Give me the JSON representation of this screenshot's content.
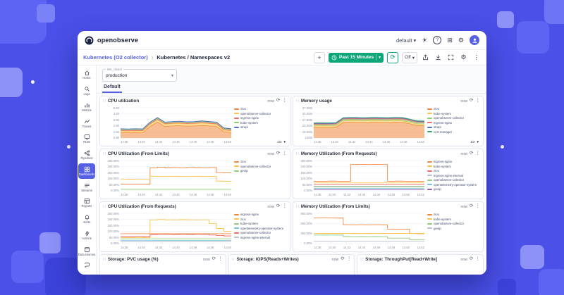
{
  "colors": {
    "accent_green": "#0ca678",
    "brand_indigo": "#5560e4",
    "background_blue": "#4a50e8"
  },
  "icons": {
    "drag": "∷",
    "refresh": "⟳",
    "more": "⋮",
    "caret": "▾",
    "chevron": "›",
    "plus": "+",
    "sun": "☀",
    "gear": "⚙",
    "apps": "⊞",
    "help": "?",
    "pagination_down": "▼"
  },
  "topbar": {
    "brand": "openobserve",
    "org": "default"
  },
  "toolbar": {
    "breadcrumb_folder": "Kubernetes (O2 collector)",
    "breadcrumb_page": "Kubernetes / Namespaces v2",
    "time_range": "Past 15 Minutes",
    "refresh_interval": "Off"
  },
  "sidebar": {
    "items": [
      {
        "label": "Home",
        "icon": "home-icon"
      },
      {
        "label": "Logs",
        "icon": "search-icon"
      },
      {
        "label": "Metrics",
        "icon": "bar-chart-icon"
      },
      {
        "label": "Traces",
        "icon": "line-chart-icon"
      },
      {
        "label": "RUM",
        "icon": "monitor-icon"
      },
      {
        "label": "Pipelines",
        "icon": "branch-icon"
      },
      {
        "label": "Dashboards",
        "icon": "dashboard-grid-icon",
        "active": true
      },
      {
        "label": "Streams",
        "icon": "streams-icon"
      },
      {
        "label": "Reports",
        "icon": "report-table-icon"
      },
      {
        "label": "Alerts",
        "icon": "bell-icon"
      },
      {
        "label": "Actions",
        "icon": "lightning-icon"
      },
      {
        "label": "Data sources",
        "icon": "database-icon"
      }
    ]
  },
  "filters": {
    "variable_label": "k8s_cluster",
    "variable_value": "production",
    "tab": "Default"
  },
  "panel_common": {
    "now_label": "now"
  },
  "panels": [
    {
      "title": "CPU utilization",
      "pagination": "1/2",
      "chart_data": {
        "type": "stacked-area",
        "ylim": [
          0,
          5.5
        ],
        "y_labels": [
          "5.50",
          "4.50",
          "3.50",
          "2.50",
          "1.50",
          "0.50"
        ],
        "x_labels": [
          "14:38",
          "14:40",
          "14:42",
          "14:44",
          "14:46",
          "14:48",
          "14:50"
        ],
        "series": [
          {
            "name": "ziox",
            "color": "#f0863a",
            "values": [
              1.0,
              0.95,
              1.0,
              0.95,
              2.1,
              2.9,
              2.1,
              2.2,
              2.25,
              2.15,
              2.2,
              2.3,
              2.2,
              2.1,
              1.15,
              1.0
            ]
          },
          {
            "name": "openobserve-collector",
            "color": "#fbc34b",
            "values": [
              0.3,
              0.31,
              0.3,
              0.32,
              0.4,
              0.42,
              0.41,
              0.4,
              0.42,
              0.41,
              0.4,
              0.42,
              0.41,
              0.4,
              0.31,
              0.3
            ]
          },
          {
            "name": "ingress-nginx",
            "color": "#ef6a6a",
            "values": [
              0.12,
              0.12,
              0.12,
              0.12,
              0.12,
              0.12,
              0.12,
              0.12,
              0.12,
              0.12,
              0.12,
              0.12,
              0.12,
              0.12,
              0.12,
              0.12
            ]
          },
          {
            "name": "kube-system",
            "color": "#8fcc72",
            "values": [
              0.18,
              0.18,
              0.18,
              0.18,
              0.18,
              0.18,
              0.18,
              0.18,
              0.18,
              0.18,
              0.18,
              0.18,
              0.18,
              0.18,
              0.18,
              0.18
            ]
          },
          {
            "name": "strapi",
            "color": "#5470c6",
            "values": [
              0.08,
              0.08,
              0.08,
              0.08,
              0.08,
              0.08,
              0.08,
              0.08,
              0.08,
              0.08,
              0.08,
              0.08,
              0.08,
              0.08,
              0.08,
              0.08
            ]
          }
        ]
      }
    },
    {
      "title": "Memory usage",
      "pagination": "1/2",
      "chart_data": {
        "type": "stacked-area",
        "ylim": [
          14,
          37.3
        ],
        "y_labels": [
          "37.3GB",
          "32.6GB",
          "27.9GB",
          "23.3GB",
          "18.6GB",
          "14GB"
        ],
        "x_labels": [
          "14:38",
          "14:40",
          "14:42",
          "14:44",
          "14:46",
          "14:48",
          "14:50"
        ],
        "series": [
          {
            "name": "ziox",
            "color": "#f0863a",
            "values": [
              8,
              8.1,
              8,
              8.2,
              12,
              12.2,
              12.1,
              12,
              12.2,
              12.1,
              12,
              12.2,
              12.1,
              11,
              9.6,
              9.5
            ]
          },
          {
            "name": "kube-system",
            "color": "#fbc34b",
            "values": [
              1.2,
              1.2,
              1.2,
              1.2,
              1.2,
              1.2,
              1.2,
              1.2,
              1.2,
              1.2,
              1.2,
              1.2,
              1.2,
              1.2,
              1.2,
              1.2
            ]
          },
          {
            "name": "openobserve-collector",
            "color": "#8fcc72",
            "values": [
              1.0,
              1.0,
              1.0,
              1.0,
              1.0,
              1.0,
              1.0,
              1.0,
              1.0,
              1.0,
              1.0,
              1.0,
              1.0,
              1.0,
              1.0,
              1.0
            ]
          },
          {
            "name": "ingress-nginx",
            "color": "#ef6a6a",
            "values": [
              0.6,
              0.6,
              0.6,
              0.6,
              0.6,
              0.6,
              0.6,
              0.6,
              0.6,
              0.6,
              0.6,
              0.6,
              0.6,
              0.6,
              0.6,
              0.6
            ]
          },
          {
            "name": "strapi",
            "color": "#5470c6",
            "values": [
              0.5,
              0.5,
              0.5,
              0.5,
              0.5,
              0.5,
              0.5,
              0.5,
              0.5,
              0.5,
              0.5,
              0.5,
              0.5,
              0.5,
              0.5,
              0.5
            ]
          },
          {
            "name": "cert-manager",
            "color": "#3ba272",
            "values": [
              0.3,
              0.3,
              0.3,
              0.3,
              0.3,
              0.3,
              0.3,
              0.3,
              0.3,
              0.3,
              0.3,
              0.3,
              0.3,
              0.3,
              0.3,
              0.3
            ]
          }
        ]
      }
    },
    {
      "title": "CPU Utilization (From Limits)",
      "chart_data": {
        "type": "line",
        "ylim": [
          0,
          250
        ],
        "y_labels": [
          "250.00%",
          "200.00%",
          "150.00%",
          "100.00%",
          "50.00%",
          "0.00%"
        ],
        "x_labels": [
          "14:38",
          "14:40",
          "14:42",
          "14:44",
          "14:46",
          "14:48",
          "14:50"
        ],
        "series": [
          {
            "name": "ziox",
            "color": "#f0863a",
            "values": [
              55,
              55,
              56,
              55,
              190,
              195,
              191,
              192,
              190,
              193,
              191,
              190,
              192,
              150,
              148,
              147
            ]
          },
          {
            "name": "openobserve-collector",
            "color": "#fbc34b",
            "values": [
              95,
              96,
              95,
              94,
              120,
              118,
              119,
              120,
              118,
              119,
              120,
              118,
              119,
              80,
              79,
              78
            ]
          },
          {
            "name": "geoip",
            "color": "#8fcc72",
            "values": [
              12,
              12,
              12,
              12,
              12,
              12,
              12,
              12,
              12,
              12,
              12,
              12,
              12,
              12,
              12,
              12
            ]
          }
        ]
      }
    },
    {
      "title": "Memory Utilization (From Requests)",
      "chart_data": {
        "type": "line",
        "ylim": [
          0,
          300
        ],
        "y_labels": [
          "300.00%",
          "240.00%",
          "180.00%",
          "120.00%",
          "60.00%",
          "0.00%"
        ],
        "x_labels": [
          "14:38",
          "14:40",
          "14:42",
          "14:44",
          "14:46",
          "14:48",
          "14:50",
          "14:52"
        ],
        "series": [
          {
            "name": "ingress-nginx",
            "color": "#f0863a",
            "values": [
              95,
              95,
              96,
              95,
              95,
              260,
              262,
              260,
              261,
              260,
              95,
              96,
              95,
              95,
              95,
              95
            ]
          },
          {
            "name": "kube-system",
            "color": "#fbc34b",
            "values": [
              78,
              78,
              78,
              78,
              78,
              78,
              78,
              78,
              78,
              78,
              78,
              78,
              78,
              78,
              78,
              78
            ]
          },
          {
            "name": "ziox",
            "color": "#ef6a6a",
            "values": [
              62,
              62,
              62,
              62,
              62,
              62,
              62,
              62,
              62,
              62,
              62,
              62,
              62,
              62,
              62,
              62
            ]
          },
          {
            "name": "ingress-nginx-internal",
            "color": "#b8becc",
            "values": [
              45,
              45,
              45,
              45,
              45,
              45,
              45,
              45,
              45,
              45,
              45,
              45,
              45,
              45,
              45,
              45
            ]
          },
          {
            "name": "openobserve-collector",
            "color": "#8fcc72",
            "values": [
              38,
              38,
              38,
              38,
              38,
              38,
              38,
              38,
              38,
              38,
              38,
              38,
              38,
              38,
              38,
              38
            ]
          },
          {
            "name": "opentelemetry-operator-system",
            "color": "#73c0de",
            "values": [
              25,
              25,
              25,
              25,
              25,
              25,
              25,
              25,
              25,
              25,
              25,
              25,
              25,
              25,
              25,
              25
            ]
          },
          {
            "name": "geoip",
            "color": "#9a60b4",
            "values": [
              12,
              12,
              12,
              12,
              12,
              12,
              12,
              12,
              12,
              12,
              12,
              12,
              12,
              12,
              12,
              12
            ]
          }
        ]
      }
    },
    {
      "title": "CPU Utilization (From Requests)",
      "chart_data": {
        "type": "line",
        "ylim": [
          0,
          300
        ],
        "y_labels": [
          "300.00%",
          "240.00%",
          "180.00%",
          "120.00%",
          "60.00%",
          "0.00%"
        ],
        "x_labels": [
          "14:38",
          "14:40",
          "14:42",
          "14:44",
          "14:46",
          "14:48",
          "14:50"
        ],
        "series": [
          {
            "name": "ingress-nginx",
            "color": "#f0863a",
            "values": [
              98,
              98,
              98,
              98,
              98,
              98,
              98,
              98,
              98,
              98,
              98,
              98,
              98,
              98,
              98,
              98
            ]
          },
          {
            "name": "ziox",
            "color": "#fbc34b",
            "values": [
              60,
              60,
              61,
              60,
              235,
              238,
              236,
              235,
              237,
              236,
              235,
              236,
              200,
              150,
              122,
              118
            ]
          },
          {
            "name": "kube-system",
            "color": "#8fcc72",
            "values": [
              48,
              48,
              48,
              48,
              48,
              48,
              48,
              48,
              48,
              48,
              48,
              48,
              48,
              48,
              48,
              48
            ]
          },
          {
            "name": "opentelemetry-operator-system",
            "color": "#73c0de",
            "values": [
              30,
              30,
              30,
              30,
              30,
              30,
              30,
              30,
              30,
              30,
              30,
              30,
              30,
              30,
              30,
              30
            ]
          },
          {
            "name": "openobserve-collector",
            "color": "#ef6a6a",
            "values": [
              70,
              70,
              71,
              70,
              90,
              92,
              91,
              90,
              91,
              90,
              92,
              91,
              85,
              80,
              76,
              74
            ]
          },
          {
            "name": "ingress-nginx-internal",
            "color": "#b8becc",
            "values": [
              18,
              18,
              18,
              18,
              18,
              18,
              18,
              18,
              18,
              18,
              18,
              18,
              18,
              18,
              18,
              18
            ]
          }
        ]
      }
    },
    {
      "title": "Memory Utilization (From Limits)",
      "chart_data": {
        "type": "line",
        "ylim": [
          0,
          900
        ],
        "y_labels": [
          "900.00%",
          "600.00%",
          "300.00%",
          "0.00%"
        ],
        "x_labels": [
          "14:38",
          "14:40",
          "14:42",
          "14:44",
          "14:46",
          "14:48",
          "14:50",
          "14:52"
        ],
        "series": [
          {
            "name": "ziox",
            "color": "#f0863a",
            "values": [
              760,
              762,
              760,
              758,
              560,
              558,
              560,
              559,
              560,
              558,
              430,
              428,
              430,
              300,
              296,
              294
            ]
          },
          {
            "name": "kube-system",
            "color": "#fbc34b",
            "values": [
              305,
              304,
              305,
              304,
              305,
              304,
              305,
              304,
              305,
              304,
              305,
              304,
              305,
              304,
              305,
              304
            ]
          },
          {
            "name": "openobserve-collector",
            "color": "#8fcc72",
            "values": [
              255,
              254,
              255,
              254,
              210,
              209,
              210,
              209,
              210,
              209,
              165,
              164,
              165,
              120,
              119,
              118
            ]
          },
          {
            "name": "geoip",
            "color": "#b8becc",
            "values": [
              70,
              70,
              70,
              70,
              70,
              70,
              70,
              70,
              70,
              70,
              70,
              70,
              70,
              70,
              70,
              70
            ]
          }
        ]
      }
    }
  ],
  "bottom_panels": [
    {
      "title": "Storage: PVC usage (%)"
    },
    {
      "title": "Storage: IOPS(Reads+Writes)"
    },
    {
      "title": "Storage: ThroughPut[Read+Write]"
    }
  ]
}
